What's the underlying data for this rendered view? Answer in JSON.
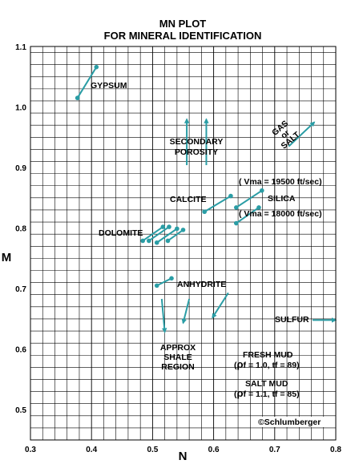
{
  "chart_data": {
    "type": "scatter",
    "title": "MN PLOT",
    "subtitle": "FOR MINERAL IDENTIFICATION",
    "xlabel": "N",
    "ylabel": "M",
    "xlim": [
      0.3,
      0.8
    ],
    "ylim": [
      0.45,
      1.1
    ],
    "x_ticks": [
      "0.3",
      "0.4",
      "0.5",
      "0.6",
      "0.7",
      "0.8"
    ],
    "y_ticks": [
      "0.5",
      "0.6",
      "0.7",
      "0.8",
      "0.9",
      "1.0",
      "1.1"
    ],
    "grid": true,
    "series_color": "#2a9da5",
    "minerals": [
      {
        "label": "GYPSUM",
        "points": [
          [
            0.377,
            1.015
          ],
          [
            0.408,
            1.066
          ]
        ]
      },
      {
        "label": "CALCITE",
        "points": [
          [
            0.585,
            0.827
          ],
          [
            0.628,
            0.853
          ]
        ]
      },
      {
        "label": "",
        "points": [
          [
            0.637,
            0.834
          ],
          [
            0.679,
            0.862
          ]
        ]
      },
      {
        "label": "",
        "points": [
          [
            0.637,
            0.808
          ],
          [
            0.674,
            0.834
          ]
        ]
      },
      {
        "label": "",
        "points": [
          [
            0.484,
            0.779
          ],
          [
            0.517,
            0.802
          ]
        ]
      },
      {
        "label": "",
        "points": [
          [
            0.494,
            0.779
          ],
          [
            0.527,
            0.802
          ]
        ]
      },
      {
        "label": "",
        "points": [
          [
            0.507,
            0.776
          ],
          [
            0.54,
            0.799
          ]
        ]
      },
      {
        "label": "",
        "points": [
          [
            0.525,
            0.779
          ],
          [
            0.55,
            0.797
          ]
        ]
      },
      {
        "label": "",
        "points": [
          [
            0.507,
            0.705
          ],
          [
            0.531,
            0.717
          ]
        ]
      }
    ],
    "arrows": [
      {
        "from": [
          0.556,
          0.904
        ],
        "to": [
          0.556,
          0.98
        ]
      },
      {
        "from": [
          0.588,
          0.904
        ],
        "to": [
          0.588,
          0.98
        ]
      },
      {
        "from": [
          0.723,
          0.935
        ],
        "to": [
          0.765,
          0.975
        ]
      },
      {
        "from": [
          0.515,
          0.683
        ],
        "to": [
          0.52,
          0.628
        ]
      },
      {
        "from": [
          0.56,
          0.683
        ],
        "to": [
          0.55,
          0.643
        ]
      },
      {
        "from": [
          0.624,
          0.693
        ],
        "to": [
          0.598,
          0.652
        ]
      },
      {
        "from": [
          0.762,
          0.648
        ],
        "to": [
          0.8,
          0.648
        ]
      }
    ],
    "annotations": {
      "gypsum": "GYPSUM",
      "secondary_porosity_1": "SECONDARY",
      "secondary_porosity_2": "POROSITY",
      "gas_1": "GAS",
      "gas_2": "or",
      "gas_3": "SALT",
      "vma_high": "( Vma = 19500 ft/sec)",
      "calcite": "CALCITE",
      "silica": "SILICA",
      "vma_low": "( Vma = 18000 ft/sec)",
      "dolomite": "DOLOMITE",
      "anhydrite": "ANHYDRITE",
      "sulfur": "SULFUR",
      "shale_1": "APPROX",
      "shale_2": "SHALE",
      "shale_3": "REGION",
      "fresh_mud_1": "FRESH MUD",
      "fresh_mud_rho": "ρ",
      "fresh_mud_2": "f = 1.0, tf = 89)",
      "salt_mud_1": "SALT MUD",
      "salt_mud_rho": "ρ",
      "salt_mud_2": "f = 1.1, tf = 85)",
      "copyright": "©Schlumberger"
    }
  }
}
